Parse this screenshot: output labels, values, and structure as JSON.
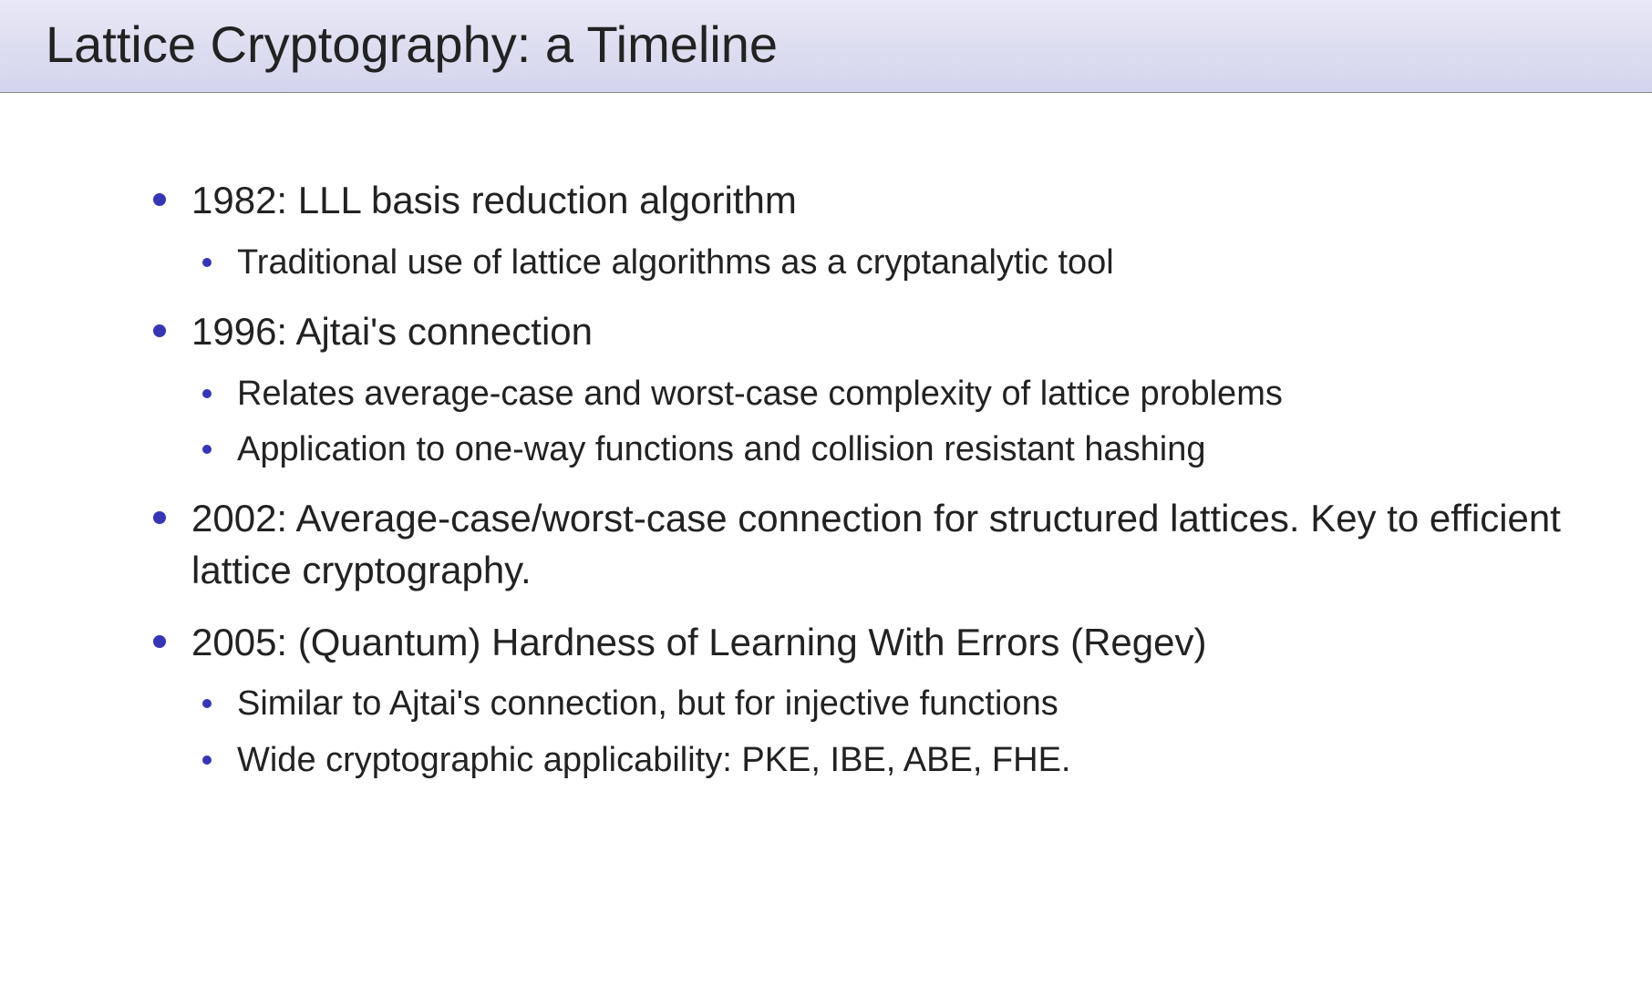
{
  "slide": {
    "title": "Lattice Cryptography: a Timeline",
    "title_bg_gradient_top": "#e8e8f5",
    "title_bg_gradient_bottom": "#d4d4ed",
    "title_fontsize": 56,
    "title_color": "#222222",
    "bullet_color": "#3636b5",
    "background_color": "#ffffff",
    "body_fontsize_outer": 42,
    "body_fontsize_inner": 38,
    "items": [
      {
        "text": "1982: LLL basis reduction algorithm",
        "sub": [
          "Traditional use of lattice algorithms as a cryptanalytic tool"
        ]
      },
      {
        "text": "1996: Ajtai's connection",
        "sub": [
          "Relates average-case and worst-case complexity of lattice problems",
          "Application to one-way functions and collision resistant hashing"
        ]
      },
      {
        "text": "2002: Average-case/worst-case connection for structured lattices. Key to efficient lattice cryptography.",
        "sub": []
      },
      {
        "text": "2005: (Quantum) Hardness of Learning With Errors (Regev)",
        "sub": [
          "Similar to Ajtai's connection, but for injective functions",
          "Wide cryptographic applicability: PKE, IBE, ABE, FHE."
        ]
      }
    ]
  }
}
